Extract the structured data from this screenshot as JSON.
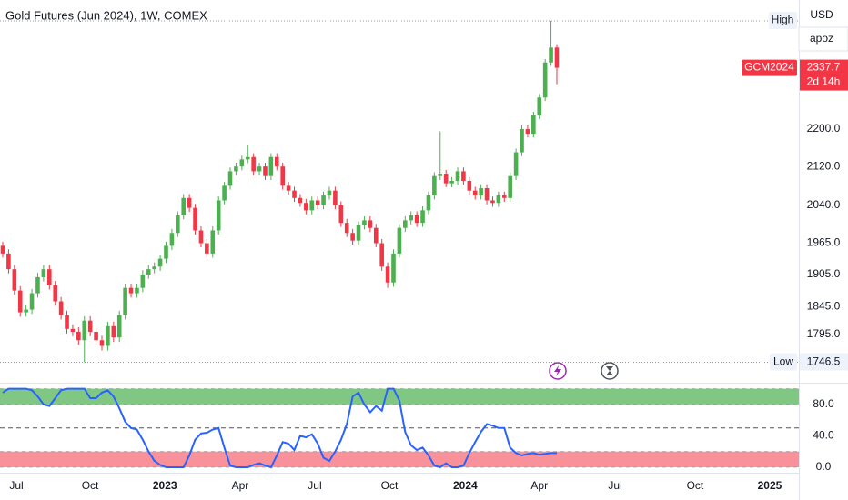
{
  "chart_data": [
    {
      "type": "candlestick",
      "title": "Gold Futures (Jun 2024), 1W, COMEX",
      "open": [
        1960,
        1945,
        1915,
        1875,
        1835,
        1840,
        1870,
        1900,
        1915,
        1885,
        1855,
        1830,
        1805,
        1800,
        1785,
        1820,
        1800,
        1785,
        1775,
        1810,
        1790,
        1830,
        1880,
        1870,
        1880,
        1905,
        1915,
        1920,
        1935,
        1960,
        1985,
        2020,
        2055,
        2035,
        1990,
        1965,
        1945,
        1990,
        2050,
        2080,
        2110,
        2120,
        2135,
        2140,
        2110,
        2120,
        2100,
        2140,
        2120,
        2080,
        2070,
        2055,
        2045,
        2030,
        2050,
        2040,
        2060,
        2070,
        2040,
        2005,
        1985,
        1970,
        2000,
        2010,
        1995,
        1965,
        1920,
        1890,
        1945,
        1995,
        2010,
        2020,
        2005,
        2030,
        2060,
        2100,
        2105,
        2085,
        2090,
        2110,
        2090,
        2070,
        2060,
        2075,
        2050,
        2045,
        2060,
        2055,
        2100,
        2150,
        2200,
        2190,
        2230,
        2270,
        2350,
        2385
      ],
      "high": [
        1968,
        1953,
        1923,
        1883,
        1848,
        1878,
        1908,
        1923,
        1923,
        1893,
        1863,
        1838,
        1813,
        1808,
        1828,
        1828,
        1808,
        1793,
        1818,
        1818,
        1838,
        1888,
        1888,
        1888,
        1913,
        1923,
        1928,
        1943,
        1968,
        1993,
        2028,
        2063,
        2063,
        2043,
        1998,
        1973,
        1998,
        2058,
        2088,
        2118,
        2128,
        2143,
        2165,
        2148,
        2128,
        2128,
        2148,
        2148,
        2128,
        2088,
        2078,
        2063,
        2053,
        2058,
        2058,
        2068,
        2078,
        2078,
        2048,
        2013,
        1993,
        2008,
        2018,
        2018,
        2003,
        1973,
        1928,
        1953,
        2003,
        2018,
        2028,
        2028,
        2038,
        2068,
        2108,
        2195,
        2113,
        2098,
        2118,
        2118,
        2098,
        2078,
        2083,
        2083,
        2058,
        2068,
        2068,
        2108,
        2158,
        2208,
        2208,
        2238,
        2278,
        2358,
        2448.8,
        2393
      ],
      "low": [
        1937,
        1907,
        1867,
        1827,
        1827,
        1832,
        1862,
        1892,
        1877,
        1847,
        1822,
        1797,
        1792,
        1777,
        1746.5,
        1792,
        1777,
        1767,
        1767,
        1782,
        1782,
        1822,
        1862,
        1862,
        1872,
        1897,
        1907,
        1912,
        1927,
        1952,
        1977,
        2012,
        2027,
        1982,
        1957,
        1937,
        1937,
        1982,
        2042,
        2072,
        2102,
        2112,
        2127,
        2102,
        2102,
        2092,
        2092,
        2112,
        2072,
        2062,
        2047,
        2037,
        2022,
        2022,
        2032,
        2032,
        2052,
        2032,
        1997,
        1977,
        1962,
        1962,
        1992,
        1987,
        1957,
        1912,
        1880,
        1882,
        1937,
        1987,
        2002,
        1997,
        1997,
        2022,
        2052,
        2092,
        2077,
        2077,
        2082,
        2082,
        2062,
        2052,
        2052,
        2042,
        2037,
        2037,
        2047,
        2047,
        2092,
        2142,
        2182,
        2182,
        2222,
        2262,
        2342,
        2300
      ],
      "close": [
        1945,
        1915,
        1875,
        1835,
        1840,
        1870,
        1900,
        1915,
        1885,
        1855,
        1830,
        1805,
        1800,
        1785,
        1820,
        1800,
        1785,
        1775,
        1810,
        1790,
        1830,
        1880,
        1870,
        1880,
        1905,
        1915,
        1920,
        1935,
        1960,
        1985,
        2020,
        2055,
        2035,
        1990,
        1965,
        1945,
        1990,
        2050,
        2080,
        2110,
        2120,
        2135,
        2140,
        2110,
        2120,
        2100,
        2140,
        2120,
        2080,
        2070,
        2055,
        2045,
        2030,
        2050,
        2040,
        2060,
        2070,
        2040,
        2005,
        1985,
        1970,
        2000,
        2010,
        1995,
        1965,
        1920,
        1890,
        1945,
        1995,
        2010,
        2020,
        2005,
        2030,
        2060,
        2100,
        2105,
        2085,
        2090,
        2110,
        2090,
        2070,
        2060,
        2075,
        2050,
        2045,
        2060,
        2055,
        2100,
        2150,
        2200,
        2190,
        2230,
        2270,
        2350,
        2385,
        2337.7
      ],
      "up_color": "#4caf50",
      "down_color": "#f23645",
      "ylim": [
        1713,
        2500
      ],
      "log_scale": true,
      "yticks": [
        {
          "value": 2200,
          "label": "2200.0"
        },
        {
          "value": 2120,
          "label": "2120.0"
        },
        {
          "value": 2040,
          "label": "2040.0"
        },
        {
          "value": 1965,
          "label": "1965.0"
        },
        {
          "value": 1905,
          "label": "1905.0"
        },
        {
          "value": 1845,
          "label": "1845.0"
        },
        {
          "value": 1795,
          "label": "1795.0"
        }
      ],
      "xlim": [
        -0.47,
        136.5
      ],
      "xticks": [
        {
          "value": 2.34,
          "label": "Jul"
        },
        {
          "value": 14.98,
          "label": "Oct"
        },
        {
          "value": 27.8,
          "label": "2023"
        },
        {
          "value": 40.7,
          "label": "Apr"
        },
        {
          "value": 53.5,
          "label": "Jul"
        },
        {
          "value": 66.3,
          "label": "Oct"
        },
        {
          "value": 79.3,
          "label": "2024"
        },
        {
          "value": 92.0,
          "label": "Apr"
        },
        {
          "value": 105.0,
          "label": "Jul"
        },
        {
          "value": 118.7,
          "label": "Oct"
        },
        {
          "value": 131.5,
          "label": "2025"
        }
      ],
      "high_label": "High",
      "low_label": "Low",
      "symbol": "GCM2024",
      "countdown": "2d 14h",
      "currency": "USD",
      "scale_mode": "apoz"
    },
    {
      "type": "line",
      "values": [
        95,
        100,
        100,
        100,
        100,
        98,
        90,
        80,
        78,
        88,
        98,
        100,
        100,
        100,
        100,
        88,
        88,
        95,
        98,
        90,
        75,
        58,
        50,
        48,
        35,
        20,
        8,
        3,
        0,
        0,
        0,
        0,
        15,
        35,
        43,
        44,
        48,
        50,
        25,
        2,
        0,
        0,
        0,
        3,
        5,
        2,
        0,
        15,
        32,
        30,
        22,
        40,
        38,
        42,
        30,
        12,
        8,
        20,
        35,
        55,
        90,
        95,
        80,
        70,
        78,
        72,
        100,
        100,
        85,
        45,
        28,
        22,
        25,
        15,
        2,
        0,
        5,
        0,
        0,
        2,
        18,
        32,
        45,
        55,
        53,
        50,
        50,
        25,
        18,
        15,
        17,
        18,
        16,
        17,
        18,
        18
      ],
      "color": "#2962ff",
      "ylim": [
        -7,
        103
      ],
      "yticks": [
        {
          "value": 80,
          "label": "80.0"
        },
        {
          "value": 40,
          "label": "40.0"
        },
        {
          "value": 0,
          "label": "0.0"
        }
      ],
      "upper_band": [
        80,
        100
      ],
      "lower_band": [
        0,
        20
      ],
      "mid_line": 50
    }
  ]
}
